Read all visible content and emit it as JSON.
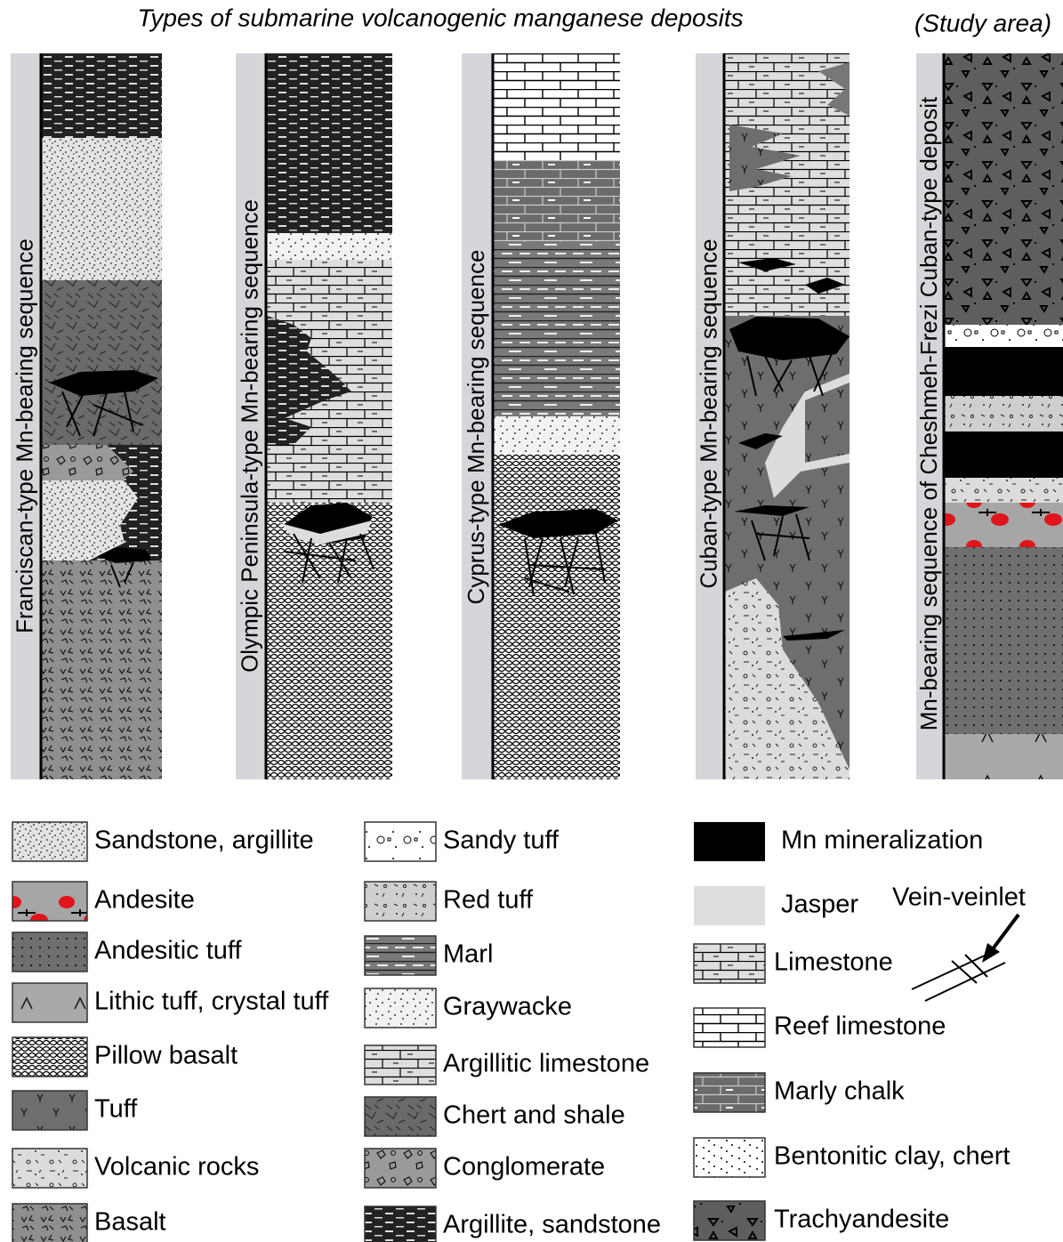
{
  "title": "Types of submarine volcanogenic manganese deposits",
  "study_area": "(Study area)",
  "columns": [
    {
      "label": "Franciscan-type Mn-bearing sequence"
    },
    {
      "label": "Olympic Peninsula-type Mn-bearing sequence"
    },
    {
      "label": "Cyprus-type Mn-bearing sequence"
    },
    {
      "label": "Cuban-type Mn-bearing sequence"
    },
    {
      "label": "Mn-bearing sequence of Cheshmeh-Frezi Cuban-type deposit"
    }
  ],
  "legend": {
    "left": [
      "Sandstone, argillite",
      "Andesite",
      "Andesitic tuff",
      "Lithic tuff, crystal tuff",
      "Pillow basalt",
      "Tuff",
      "Volcanic rocks",
      "Basalt"
    ],
    "middle": [
      "Sandy tuff",
      "Red tuff",
      "Marl",
      "Graywacke",
      "Argillitic limestone",
      "Chert and shale",
      "Conglomerate",
      "Argillite, sandstone"
    ],
    "right": [
      "Mn mineralization",
      "Jasper",
      "Limestone",
      "Reef limestone",
      "Marly chalk",
      "Bentonitic clay, chert",
      "Trachyandesite"
    ]
  },
  "vein_label": "Vein-veinlet"
}
